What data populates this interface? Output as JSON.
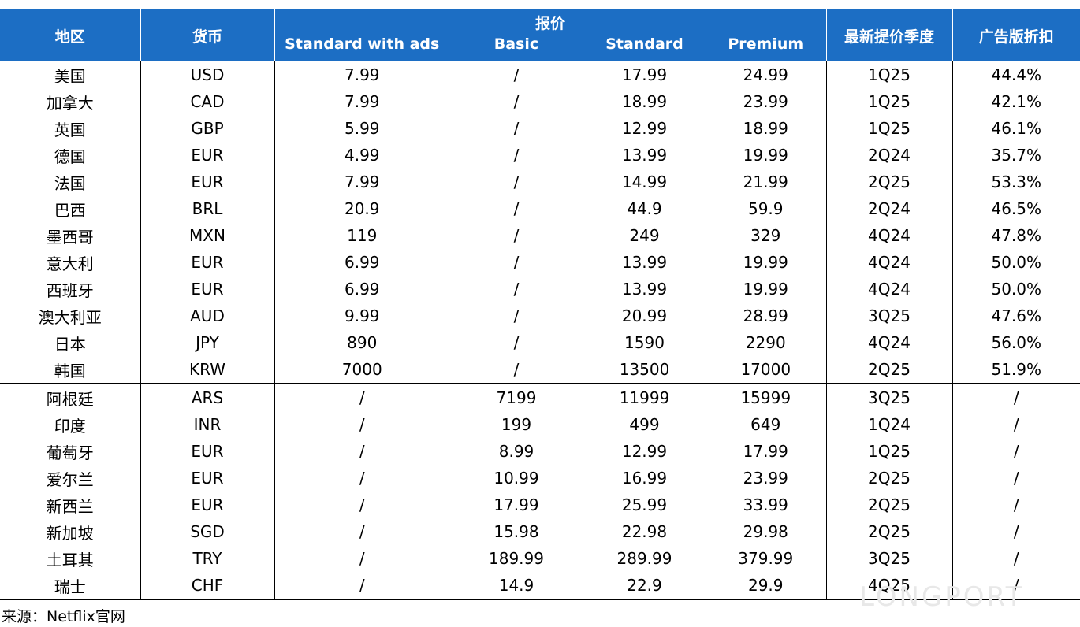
{
  "table": {
    "header": {
      "region": "地区",
      "currency": "货币",
      "price_group": "报价",
      "plans": [
        "Standard with ads",
        "Basic",
        "Standard",
        "Premium"
      ],
      "latest": "最新提价季度",
      "discount": "广告版折扣"
    },
    "rows": [
      [
        "美国",
        "USD",
        "7.99",
        "/",
        "17.99",
        "24.99",
        "1Q25",
        "44.4%"
      ],
      [
        "加拿大",
        "CAD",
        "7.99",
        "/",
        "18.99",
        "23.99",
        "1Q25",
        "42.1%"
      ],
      [
        "英国",
        "GBP",
        "5.99",
        "/",
        "12.99",
        "18.99",
        "1Q25",
        "46.1%"
      ],
      [
        "德国",
        "EUR",
        "4.99",
        "/",
        "13.99",
        "19.99",
        "2Q24",
        "35.7%"
      ],
      [
        "法国",
        "EUR",
        "7.99",
        "/",
        "14.99",
        "21.99",
        "2Q25",
        "53.3%"
      ],
      [
        "巴西",
        "BRL",
        "20.9",
        "/",
        "44.9",
        "59.9",
        "2Q24",
        "46.5%"
      ],
      [
        "墨西哥",
        "MXN",
        "119",
        "/",
        "249",
        "329",
        "4Q24",
        "47.8%"
      ],
      [
        "意大利",
        "EUR",
        "6.99",
        "/",
        "13.99",
        "19.99",
        "4Q24",
        "50.0%"
      ],
      [
        "西班牙",
        "EUR",
        "6.99",
        "/",
        "13.99",
        "19.99",
        "4Q24",
        "50.0%"
      ],
      [
        "澳大利亚",
        "AUD",
        "9.99",
        "/",
        "20.99",
        "28.99",
        "3Q25",
        "47.6%"
      ],
      [
        "日本",
        "JPY",
        "890",
        "/",
        "1590",
        "2290",
        "4Q24",
        "56.0%"
      ],
      [
        "韩国",
        "KRW",
        "7000",
        "/",
        "13500",
        "17000",
        "2Q25",
        "51.9%"
      ],
      [
        "阿根廷",
        "ARS",
        "/",
        "7199",
        "11999",
        "15999",
        "3Q25",
        "/"
      ],
      [
        "印度",
        "INR",
        "/",
        "199",
        "499",
        "649",
        "1Q24",
        "/"
      ],
      [
        "葡萄牙",
        "EUR",
        "/",
        "8.99",
        "12.99",
        "17.99",
        "1Q25",
        "/"
      ],
      [
        "爱尔兰",
        "EUR",
        "/",
        "10.99",
        "16.99",
        "23.99",
        "2Q25",
        "/"
      ],
      [
        "新西兰",
        "EUR",
        "/",
        "17.99",
        "25.99",
        "33.99",
        "2Q25",
        "/"
      ],
      [
        "新加坡",
        "SGD",
        "/",
        "15.98",
        "22.98",
        "29.98",
        "2Q25",
        "/"
      ],
      [
        "土耳其",
        "TRY",
        "/",
        "189.99",
        "289.99",
        "379.99",
        "3Q25",
        "/"
      ],
      [
        "瑞士",
        "CHF",
        "/",
        "14.9",
        "22.9",
        "29.9",
        "4Q25",
        "/"
      ]
    ]
  },
  "source": "来源：Netflix官网",
  "watermark": "LONGPORT"
}
